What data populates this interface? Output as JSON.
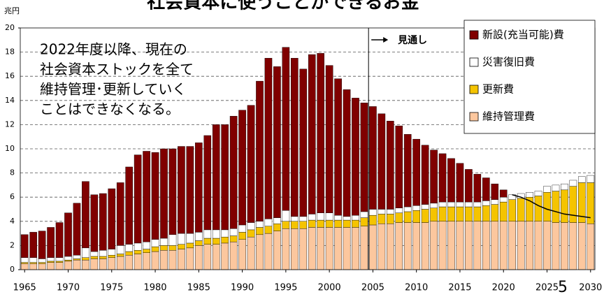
{
  "chart_data": {
    "type": "bar",
    "stacked": true,
    "title": "社会資本に使うことができるお金",
    "y_axis_label": "兆円",
    "page_number": "5",
    "x": [
      1965,
      1966,
      1967,
      1968,
      1969,
      1970,
      1971,
      1972,
      1973,
      1974,
      1975,
      1976,
      1977,
      1978,
      1979,
      1980,
      1981,
      1982,
      1983,
      1984,
      1985,
      1986,
      1987,
      1988,
      1989,
      1990,
      1991,
      1992,
      1993,
      1994,
      1995,
      1996,
      1997,
      1998,
      1999,
      2000,
      2001,
      2002,
      2003,
      2004,
      2005,
      2006,
      2007,
      2008,
      2009,
      2010,
      2011,
      2012,
      2013,
      2014,
      2015,
      2016,
      2017,
      2018,
      2019,
      2020,
      2021,
      2022,
      2023,
      2024,
      2025,
      2026,
      2027,
      2028,
      2029,
      2030
    ],
    "xlim": [
      1964.5,
      2030.5
    ],
    "xticks": [
      1965,
      1970,
      1975,
      1980,
      1985,
      1990,
      1995,
      2000,
      2005,
      2010,
      2015,
      2020,
      2025,
      2030
    ],
    "ylim": [
      0,
      20
    ],
    "yticks": [
      0,
      2,
      4,
      6,
      8,
      10,
      12,
      14,
      16,
      18,
      20
    ],
    "grid": true,
    "series": [
      {
        "name": "維持管理費",
        "color": "#fcc79e",
        "values": [
          0.5,
          0.5,
          0.5,
          0.6,
          0.6,
          0.7,
          0.8,
          0.8,
          0.9,
          0.9,
          1.0,
          1.1,
          1.2,
          1.3,
          1.4,
          1.5,
          1.6,
          1.6,
          1.7,
          1.8,
          2.0,
          2.1,
          2.1,
          2.2,
          2.3,
          2.5,
          2.7,
          2.9,
          3.0,
          3.2,
          3.4,
          3.4,
          3.4,
          3.5,
          3.5,
          3.5,
          3.5,
          3.5,
          3.5,
          3.6,
          3.7,
          3.8,
          3.8,
          3.9,
          3.9,
          3.9,
          3.9,
          4.0,
          4.0,
          4.0,
          4.0,
          4.0,
          4.0,
          4.0,
          4.0,
          4.0,
          4.0,
          4.0,
          4.0,
          4.0,
          4.0,
          3.9,
          3.9,
          3.9,
          3.9,
          3.8
        ]
      },
      {
        "name": "更新費",
        "color": "#f5c400",
        "values": [
          0.1,
          0.1,
          0.1,
          0.1,
          0.1,
          0.1,
          0.1,
          0.2,
          0.2,
          0.2,
          0.2,
          0.2,
          0.3,
          0.3,
          0.3,
          0.4,
          0.4,
          0.4,
          0.4,
          0.4,
          0.4,
          0.5,
          0.5,
          0.5,
          0.5,
          0.6,
          0.6,
          0.6,
          0.6,
          0.6,
          0.6,
          0.6,
          0.6,
          0.6,
          0.6,
          0.6,
          0.6,
          0.6,
          0.6,
          0.7,
          0.8,
          0.8,
          0.8,
          0.8,
          0.9,
          1.0,
          1.1,
          1.1,
          1.2,
          1.2,
          1.2,
          1.2,
          1.2,
          1.3,
          1.4,
          1.6,
          1.8,
          1.9,
          2.0,
          2.1,
          2.4,
          2.6,
          2.7,
          3.0,
          3.3,
          3.4
        ]
      },
      {
        "name": "災害復旧費",
        "color": "#ffffff",
        "values": [
          0.4,
          0.4,
          0.3,
          0.3,
          0.3,
          0.3,
          0.3,
          0.8,
          0.4,
          0.5,
          0.5,
          0.7,
          0.6,
          0.6,
          0.6,
          0.6,
          0.6,
          0.9,
          0.9,
          0.8,
          0.7,
          0.7,
          0.7,
          0.6,
          0.6,
          0.6,
          0.6,
          0.5,
          0.6,
          0.5,
          0.9,
          0.4,
          0.4,
          0.5,
          0.6,
          0.6,
          0.4,
          0.3,
          0.4,
          0.5,
          0.5,
          0.4,
          0.4,
          0.4,
          0.4,
          0.4,
          0.4,
          0.4,
          0.4,
          0.4,
          0.4,
          0.4,
          0.4,
          0.4,
          0.4,
          0.4,
          0.4,
          0.4,
          0.4,
          0.4,
          0.5,
          0.5,
          0.5,
          0.5,
          0.5,
          0.6
        ]
      },
      {
        "name": "新設(充当可能)費",
        "color": "#800000",
        "values": [
          1.9,
          2.1,
          2.3,
          2.5,
          2.9,
          3.6,
          4.3,
          5.5,
          4.7,
          4.7,
          5.0,
          5.2,
          6.4,
          7.3,
          7.5,
          7.2,
          7.4,
          7.1,
          7.2,
          7.2,
          7.4,
          7.8,
          8.7,
          8.7,
          9.3,
          9.5,
          9.7,
          11.6,
          13.3,
          12.5,
          13.5,
          13.1,
          12.2,
          13.2,
          13.2,
          12.2,
          11.3,
          10.5,
          9.7,
          9.0,
          8.5,
          7.9,
          7.3,
          6.8,
          6.0,
          5.5,
          4.9,
          4.4,
          4.0,
          3.6,
          3.2,
          2.7,
          2.3,
          1.9,
          1.3,
          0.6,
          0,
          0,
          0,
          0,
          0,
          0,
          0,
          0,
          0,
          0
        ]
      }
    ],
    "line": {
      "color": "#000000",
      "x": [
        2021,
        2022,
        2023,
        2024,
        2025,
        2026,
        2027,
        2028,
        2029,
        2030
      ],
      "values": [
        6.2,
        6.0,
        5.7,
        5.3,
        5.0,
        4.8,
        4.6,
        4.5,
        4.4,
        4.3
      ]
    },
    "forecast": {
      "text": "見通し",
      "x": 2004.5
    },
    "annotation": [
      "2022年度以降、現在の",
      "社会資本ストックを全て",
      "維持管理･更新していく",
      "ことはできなくなる。"
    ]
  }
}
